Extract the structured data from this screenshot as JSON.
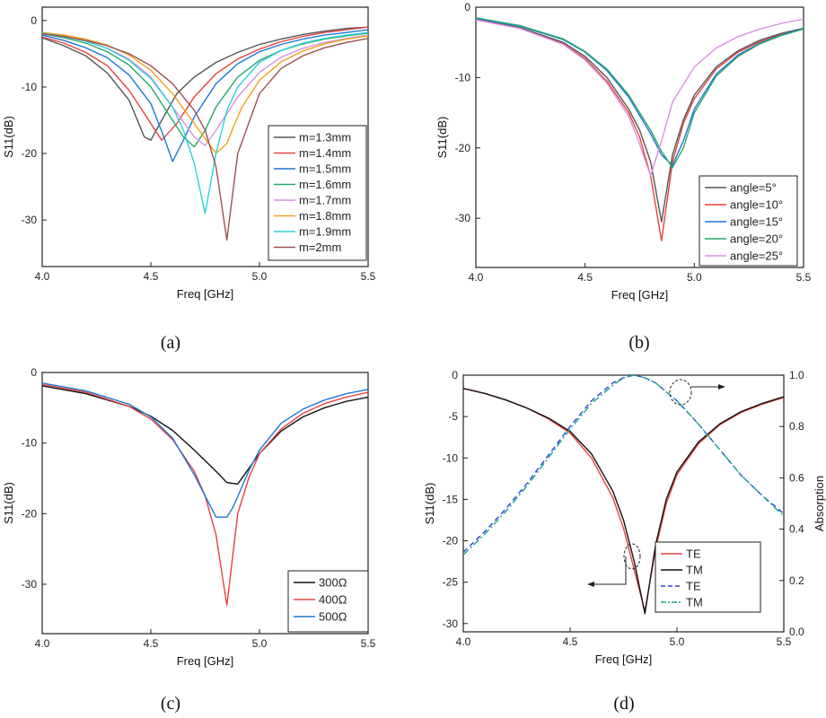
{
  "chart_data": [
    {
      "type": "line",
      "caption": "(a)",
      "xlabel": "Freq [GHz]",
      "ylabel": "S11(dB)",
      "xlim": [
        4.0,
        5.5
      ],
      "ylim": [
        -37,
        2
      ],
      "xticks": [
        4.0,
        4.5,
        5.0,
        5.5
      ],
      "xtick_labels": [
        "4.0",
        "4.5",
        "5.0",
        "5.5"
      ],
      "yticks": [
        0,
        -10,
        -20,
        -30
      ],
      "ytick_labels": [
        "0",
        "-10",
        "-20",
        "-30"
      ],
      "legend_position": "center-right",
      "series": [
        {
          "name": "m=1.3mm",
          "color": "#555555",
          "x": [
            4.0,
            4.1,
            4.2,
            4.3,
            4.4,
            4.47,
            4.5,
            4.55,
            4.62,
            4.7,
            4.8,
            4.9,
            5.0,
            5.1,
            5.2,
            5.3,
            5.4,
            5.5
          ],
          "y": [
            -2.6,
            -3.8,
            -5.3,
            -7.9,
            -12.0,
            -17.5,
            -18.0,
            -15.0,
            -11.0,
            -8.5,
            -6.3,
            -4.8,
            -3.6,
            -2.8,
            -2.1,
            -1.6,
            -1.2,
            -1.0
          ]
        },
        {
          "name": "m=1.4mm",
          "color": "#e8413f",
          "x": [
            4.0,
            4.1,
            4.2,
            4.3,
            4.4,
            4.48,
            4.55,
            4.62,
            4.7,
            4.8,
            4.9,
            5.0,
            5.1,
            5.2,
            5.3,
            5.4,
            5.5
          ],
          "y": [
            -2.5,
            -3.4,
            -4.8,
            -6.8,
            -10.5,
            -14.5,
            -18.0,
            -15.5,
            -11.5,
            -8.0,
            -5.8,
            -4.3,
            -3.2,
            -2.4,
            -1.8,
            -1.4,
            -1.0
          ]
        },
        {
          "name": "m=1.5mm",
          "color": "#1f77d6",
          "x": [
            4.0,
            4.1,
            4.2,
            4.3,
            4.4,
            4.5,
            4.56,
            4.6,
            4.65,
            4.7,
            4.8,
            4.9,
            5.0,
            5.1,
            5.2,
            5.3,
            5.4,
            5.5
          ],
          "y": [
            -2.2,
            -3.0,
            -4.1,
            -5.6,
            -8.2,
            -12.5,
            -17.5,
            -21.2,
            -18.0,
            -14.5,
            -9.5,
            -6.5,
            -4.7,
            -3.6,
            -2.8,
            -2.2,
            -1.8,
            -1.4
          ]
        },
        {
          "name": "m=1.6mm",
          "color": "#27a86b",
          "x": [
            4.0,
            4.1,
            4.2,
            4.3,
            4.4,
            4.5,
            4.6,
            4.65,
            4.7,
            4.75,
            4.8,
            4.9,
            5.0,
            5.1,
            5.2,
            5.3,
            5.4,
            5.5
          ],
          "y": [
            -2.0,
            -2.6,
            -3.4,
            -4.7,
            -6.7,
            -10.0,
            -15.0,
            -17.5,
            -19.0,
            -16.5,
            -13.0,
            -8.5,
            -6.0,
            -4.5,
            -3.5,
            -2.8,
            -2.3,
            -1.9
          ]
        },
        {
          "name": "m=1.7mm",
          "color": "#d98fe0",
          "x": [
            4.0,
            4.1,
            4.2,
            4.3,
            4.4,
            4.5,
            4.6,
            4.7,
            4.75,
            4.8,
            4.85,
            4.9,
            5.0,
            5.1,
            5.2,
            5.3,
            5.4,
            5.5
          ],
          "y": [
            -1.9,
            -2.4,
            -3.1,
            -4.2,
            -5.8,
            -8.5,
            -13.0,
            -17.5,
            -18.8,
            -16.5,
            -14.0,
            -11.5,
            -7.8,
            -5.5,
            -4.2,
            -3.3,
            -2.7,
            -2.2
          ]
        },
        {
          "name": "m=1.8mm",
          "color": "#f0a21b",
          "x": [
            4.0,
            4.1,
            4.2,
            4.3,
            4.4,
            4.5,
            4.6,
            4.7,
            4.8,
            4.85,
            4.88,
            4.92,
            5.0,
            5.1,
            5.2,
            5.3,
            5.4,
            5.5
          ],
          "y": [
            -1.8,
            -2.2,
            -2.8,
            -3.7,
            -5.2,
            -7.5,
            -11.0,
            -15.5,
            -20.0,
            -18.5,
            -16.0,
            -13.0,
            -9.0,
            -6.2,
            -4.6,
            -3.5,
            -2.8,
            -2.3
          ]
        },
        {
          "name": "m=1.9mm",
          "color": "#2fd0d8",
          "x": [
            4.0,
            4.1,
            4.2,
            4.3,
            4.4,
            4.5,
            4.6,
            4.65,
            4.7,
            4.75,
            4.8,
            4.85,
            4.9,
            5.0,
            5.1,
            5.2,
            5.3,
            5.4,
            5.5
          ],
          "y": [
            -1.9,
            -2.4,
            -3.1,
            -4.2,
            -6.0,
            -8.7,
            -13.0,
            -16.5,
            -21.5,
            -29.0,
            -20.0,
            -13.5,
            -10.0,
            -6.3,
            -4.5,
            -3.4,
            -2.7,
            -2.2,
            -1.8
          ]
        },
        {
          "name": "m=2mm",
          "color": "#9c5151",
          "x": [
            4.0,
            4.1,
            4.2,
            4.3,
            4.4,
            4.5,
            4.6,
            4.7,
            4.75,
            4.8,
            4.85,
            4.9,
            5.0,
            5.1,
            5.2,
            5.3,
            5.4,
            5.5
          ],
          "y": [
            -2.0,
            -2.4,
            -3.0,
            -3.8,
            -5.0,
            -6.8,
            -9.5,
            -13.5,
            -16.5,
            -22.0,
            -33.0,
            -20.0,
            -11.0,
            -7.2,
            -5.3,
            -4.1,
            -3.3,
            -2.7
          ]
        }
      ]
    },
    {
      "type": "line",
      "caption": "(b)",
      "xlabel": "Freq [GHz]",
      "ylabel": "S11(dB)",
      "xlim": [
        4.0,
        5.5
      ],
      "ylim": [
        -37,
        0
      ],
      "xticks": [
        4.0,
        4.5,
        5.0,
        5.5
      ],
      "xtick_labels": [
        "4.0",
        "4.5",
        "5.0",
        "5.5"
      ],
      "yticks": [
        0,
        -10,
        -20,
        -30
      ],
      "ytick_labels": [
        "0",
        "-10",
        "-20",
        "-30"
      ],
      "legend_position": "bottom-right",
      "series": [
        {
          "name": "angle=5°",
          "color": "#555555",
          "x": [
            4.0,
            4.2,
            4.4,
            4.5,
            4.6,
            4.7,
            4.75,
            4.8,
            4.85,
            4.9,
            4.95,
            5.0,
            5.1,
            5.2,
            5.3,
            5.4,
            5.5
          ],
          "y": [
            -1.7,
            -2.9,
            -5.0,
            -7.0,
            -10.0,
            -14.5,
            -17.5,
            -22.0,
            -30.5,
            -21.0,
            -16.0,
            -12.5,
            -8.5,
            -6.2,
            -4.7,
            -3.7,
            -3.0
          ]
        },
        {
          "name": "angle=10°",
          "color": "#e8413f",
          "x": [
            4.0,
            4.2,
            4.4,
            4.5,
            4.6,
            4.7,
            4.75,
            4.8,
            4.85,
            4.9,
            4.95,
            5.0,
            5.1,
            5.2,
            5.3,
            5.4,
            5.5
          ],
          "y": [
            -1.8,
            -3.0,
            -5.2,
            -7.3,
            -10.5,
            -15.0,
            -18.5,
            -24.0,
            -33.2,
            -22.0,
            -16.5,
            -13.0,
            -8.8,
            -6.4,
            -4.9,
            -3.8,
            -3.1
          ]
        },
        {
          "name": "angle=15°",
          "color": "#1f77d6",
          "x": [
            4.0,
            4.2,
            4.4,
            4.5,
            4.6,
            4.7,
            4.8,
            4.85,
            4.9,
            4.95,
            5.0,
            5.1,
            5.2,
            5.3,
            5.4,
            5.5
          ],
          "y": [
            -1.6,
            -2.7,
            -4.6,
            -6.4,
            -9.0,
            -12.8,
            -18.0,
            -21.0,
            -22.5,
            -19.0,
            -14.5,
            -9.5,
            -6.8,
            -5.1,
            -3.9,
            -3.0
          ]
        },
        {
          "name": "angle=20°",
          "color": "#27a86b",
          "x": [
            4.0,
            4.2,
            4.4,
            4.5,
            4.6,
            4.7,
            4.8,
            4.85,
            4.9,
            4.95,
            5.0,
            5.1,
            5.2,
            5.3,
            5.4,
            5.5
          ],
          "y": [
            -1.5,
            -2.6,
            -4.5,
            -6.3,
            -8.8,
            -12.5,
            -17.5,
            -20.5,
            -22.8,
            -20.0,
            -15.0,
            -9.8,
            -7.0,
            -5.2,
            -4.0,
            -3.1
          ]
        },
        {
          "name": "angle=25°",
          "color": "#d98fe0",
          "x": [
            4.0,
            4.2,
            4.4,
            4.5,
            4.6,
            4.7,
            4.75,
            4.8,
            4.85,
            4.9,
            5.0,
            5.1,
            5.2,
            5.3,
            5.4,
            5.5
          ],
          "y": [
            -1.8,
            -3.0,
            -5.3,
            -7.5,
            -10.8,
            -15.5,
            -19.5,
            -24.0,
            -19.0,
            -13.5,
            -8.5,
            -5.8,
            -4.2,
            -3.1,
            -2.3,
            -1.7
          ]
        }
      ]
    },
    {
      "type": "line",
      "caption": "(c)",
      "xlabel": "Freq [GHz]",
      "ylabel": "S11(dB)",
      "xlim": [
        4.0,
        5.5
      ],
      "ylim": [
        -37,
        0
      ],
      "xticks": [
        4.0,
        4.5,
        5.0,
        5.5
      ],
      "xtick_labels": [
        "4.0",
        "4.5",
        "5.0",
        "5.5"
      ],
      "yticks": [
        0,
        -10,
        -20,
        -30
      ],
      "ytick_labels": [
        "0",
        "-10",
        "-20",
        "-30"
      ],
      "legend_position": "bottom-right",
      "series": [
        {
          "name": "300Ω",
          "color": "#111111",
          "x": [
            4.0,
            4.2,
            4.4,
            4.5,
            4.6,
            4.7,
            4.8,
            4.85,
            4.9,
            5.0,
            5.1,
            5.2,
            5.3,
            5.4,
            5.5
          ],
          "y": [
            -1.9,
            -3.0,
            -4.8,
            -6.2,
            -8.2,
            -11.0,
            -14.0,
            -15.6,
            -15.8,
            -11.5,
            -8.3,
            -6.3,
            -5.0,
            -4.1,
            -3.5
          ]
        },
        {
          "name": "400Ω",
          "color": "#e8413f",
          "x": [
            4.0,
            4.2,
            4.4,
            4.5,
            4.6,
            4.7,
            4.75,
            4.8,
            4.85,
            4.9,
            4.95,
            5.0,
            5.1,
            5.2,
            5.3,
            5.4,
            5.5
          ],
          "y": [
            -1.7,
            -2.8,
            -4.8,
            -6.6,
            -9.5,
            -14.0,
            -17.5,
            -23.0,
            -33.0,
            -20.0,
            -15.0,
            -11.5,
            -8.0,
            -5.8,
            -4.4,
            -3.5,
            -2.8
          ]
        },
        {
          "name": "500Ω",
          "color": "#1f77d6",
          "x": [
            4.0,
            4.2,
            4.4,
            4.5,
            4.6,
            4.7,
            4.8,
            4.85,
            4.88,
            4.95,
            5.0,
            5.1,
            5.2,
            5.3,
            5.4,
            5.5
          ],
          "y": [
            -1.5,
            -2.6,
            -4.5,
            -6.3,
            -9.3,
            -14.5,
            -20.5,
            -20.5,
            -19.0,
            -14.0,
            -11.0,
            -7.2,
            -5.2,
            -3.9,
            -3.0,
            -2.4
          ]
        }
      ]
    },
    {
      "type": "line",
      "caption": "(d)",
      "xlabel": "Freq [GHz]",
      "ylabel": "S11(dB)",
      "y2label": "Absorption",
      "xlim": [
        4.0,
        5.5
      ],
      "ylim": [
        -31,
        0
      ],
      "y2lim": [
        0.0,
        1.0
      ],
      "xticks": [
        4.0,
        4.5,
        5.0,
        5.5
      ],
      "xtick_labels": [
        "4.0",
        "4.5",
        "5.0",
        "5.5"
      ],
      "yticks": [
        0,
        -5,
        -10,
        -15,
        -20,
        -25,
        -30
      ],
      "ytick_labels": [
        "0",
        "-5",
        "-10",
        "-15",
        "-20",
        "-25",
        "-30"
      ],
      "y2ticks": [
        0.0,
        0.2,
        0.4,
        0.6,
        0.8,
        1.0
      ],
      "y2tick_labels": [
        "0.0",
        "0.2",
        "0.4",
        "0.6",
        "0.8",
        "1.0"
      ],
      "legend_position": "bottom-right",
      "series": [
        {
          "name": "TE",
          "color": "#e8413f",
          "style": "solid",
          "axis": "left",
          "x": [
            4.0,
            4.1,
            4.2,
            4.3,
            4.4,
            4.5,
            4.6,
            4.7,
            4.75,
            4.8,
            4.85,
            4.9,
            4.95,
            5.0,
            5.1,
            5.2,
            5.3,
            5.4,
            5.5
          ],
          "y": [
            -1.6,
            -2.2,
            -3.0,
            -4.0,
            -5.3,
            -7.0,
            -10.0,
            -14.8,
            -18.5,
            -23.5,
            -28.5,
            -21.0,
            -15.5,
            -12.0,
            -8.3,
            -6.0,
            -4.5,
            -3.5,
            -2.7
          ]
        },
        {
          "name": "TM",
          "color": "#111111",
          "style": "solid",
          "axis": "left",
          "x": [
            4.0,
            4.1,
            4.2,
            4.3,
            4.4,
            4.5,
            4.6,
            4.7,
            4.75,
            4.8,
            4.85,
            4.9,
            4.95,
            5.0,
            5.1,
            5.2,
            5.3,
            5.4,
            5.5
          ],
          "y": [
            -1.6,
            -2.2,
            -3.0,
            -4.0,
            -5.2,
            -6.8,
            -9.5,
            -14.0,
            -17.5,
            -22.5,
            -28.8,
            -20.5,
            -15.0,
            -11.7,
            -8.1,
            -5.9,
            -4.4,
            -3.4,
            -2.6
          ]
        },
        {
          "name": "TE",
          "color": "#2b3fd6",
          "style": "dashed",
          "axis": "right",
          "x": [
            4.0,
            4.1,
            4.2,
            4.3,
            4.4,
            4.5,
            4.6,
            4.7,
            4.75,
            4.8,
            4.85,
            4.9,
            5.0,
            5.1,
            5.2,
            5.3,
            5.4,
            5.5
          ],
          "y": [
            0.31,
            0.39,
            0.48,
            0.58,
            0.69,
            0.8,
            0.9,
            0.97,
            0.99,
            1.0,
            0.99,
            0.97,
            0.9,
            0.81,
            0.71,
            0.61,
            0.53,
            0.46
          ]
        },
        {
          "name": "TM",
          "color": "#1aa892",
          "style": "dashdot",
          "axis": "right",
          "x": [
            4.0,
            4.1,
            4.2,
            4.3,
            4.4,
            4.5,
            4.6,
            4.7,
            4.75,
            4.8,
            4.85,
            4.9,
            5.0,
            5.1,
            5.2,
            5.3,
            5.4,
            5.5
          ],
          "y": [
            0.3,
            0.38,
            0.47,
            0.57,
            0.68,
            0.79,
            0.89,
            0.96,
            0.99,
            1.0,
            0.99,
            0.97,
            0.9,
            0.81,
            0.71,
            0.61,
            0.53,
            0.45
          ]
        }
      ]
    }
  ]
}
